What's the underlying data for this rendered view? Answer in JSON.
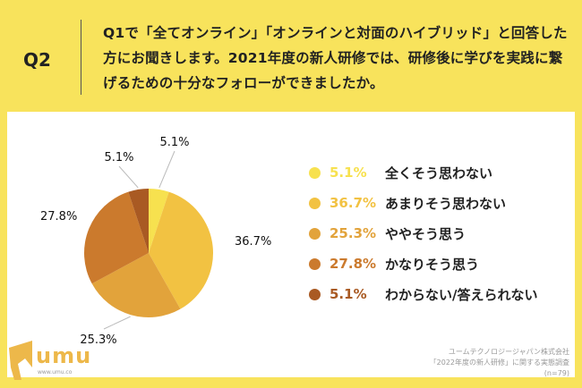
{
  "header": {
    "question_number": "Q2",
    "question_text": "Q1で「全てオンライン」「オンラインと対面のハイブリッド」と回答した方にお聞きします。2021年度の新人研修では、研修後に学びを実践に繋げるための十分なフォローができましたか。"
  },
  "chart_data": {
    "type": "pie",
    "start": "top",
    "direction": "clockwise",
    "categories": [
      "全くそう思わない",
      "あまりそう思わない",
      "ややそう思う",
      "かなりそう思う",
      "わからない/答えられない"
    ],
    "values": [
      5.1,
      36.7,
      25.3,
      27.8,
      5.1
    ],
    "labels": [
      "5.1%",
      "36.7%",
      "25.3%",
      "27.8%",
      "5.1%"
    ],
    "colors": [
      "#F7E14F",
      "#F2C242",
      "#E2A33B",
      "#CB7A2D",
      "#A95A23"
    ],
    "legend_placement": "right"
  },
  "logo": {
    "text": "umu",
    "url": "www.umu.co"
  },
  "source": {
    "line1": "ユームテクノロジージャパン株式会社",
    "line2": "「2022年度の新人研修」に関する実態調査",
    "line3": "(n=79)"
  }
}
